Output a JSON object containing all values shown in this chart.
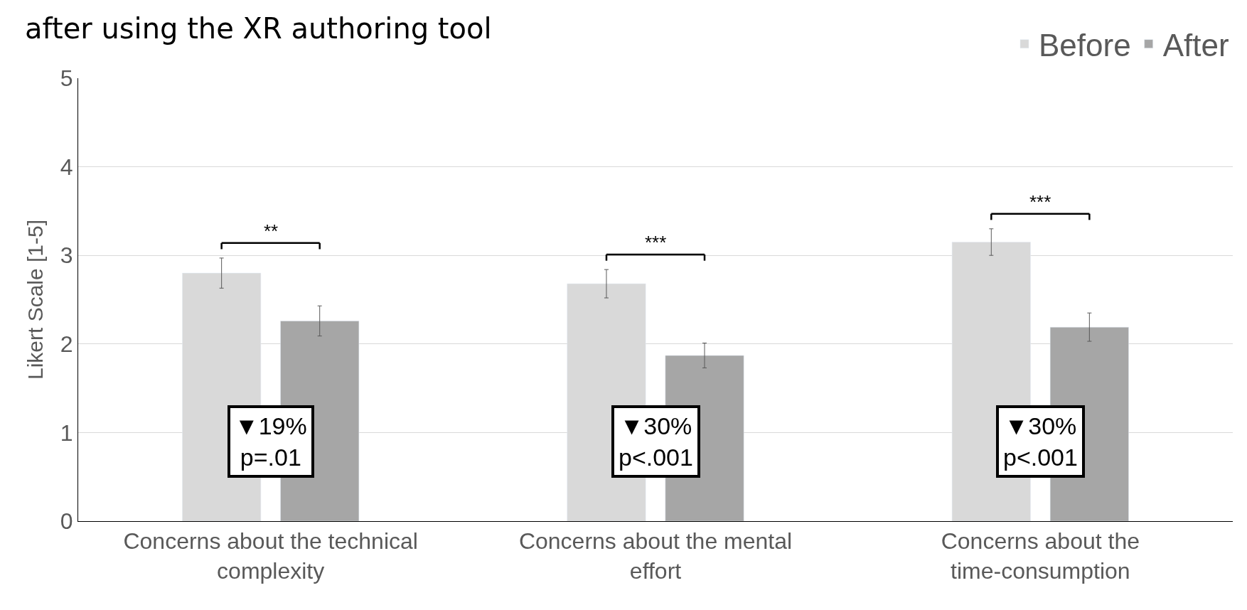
{
  "chart_data": {
    "type": "bar",
    "title": "after using the XR authoring tool",
    "ylabel": "Likert Scale [1-5]",
    "categories": [
      "Concerns about the technical complexity",
      "Concerns about the mental effort",
      "Concerns about the time-consumption"
    ],
    "series": [
      {
        "name": "Before",
        "color": "#d9d9d9",
        "values": [
          2.8,
          2.68,
          3.15
        ],
        "errors": [
          0.17,
          0.16,
          0.15
        ]
      },
      {
        "name": "After",
        "color": "#a6a6a6",
        "values": [
          2.26,
          1.87,
          2.19
        ],
        "errors": [
          0.17,
          0.14,
          0.16
        ]
      }
    ],
    "annotations": [
      "**",
      "***",
      "***",
      "▼19%\np=.01",
      "▼30%\np<.001",
      "▼30%\np<.001"
    ],
    "ylim": [
      0,
      5
    ],
    "yticks": [
      0,
      1,
      2,
      3,
      4,
      5
    ],
    "grid": "y",
    "legend": "top right"
  }
}
